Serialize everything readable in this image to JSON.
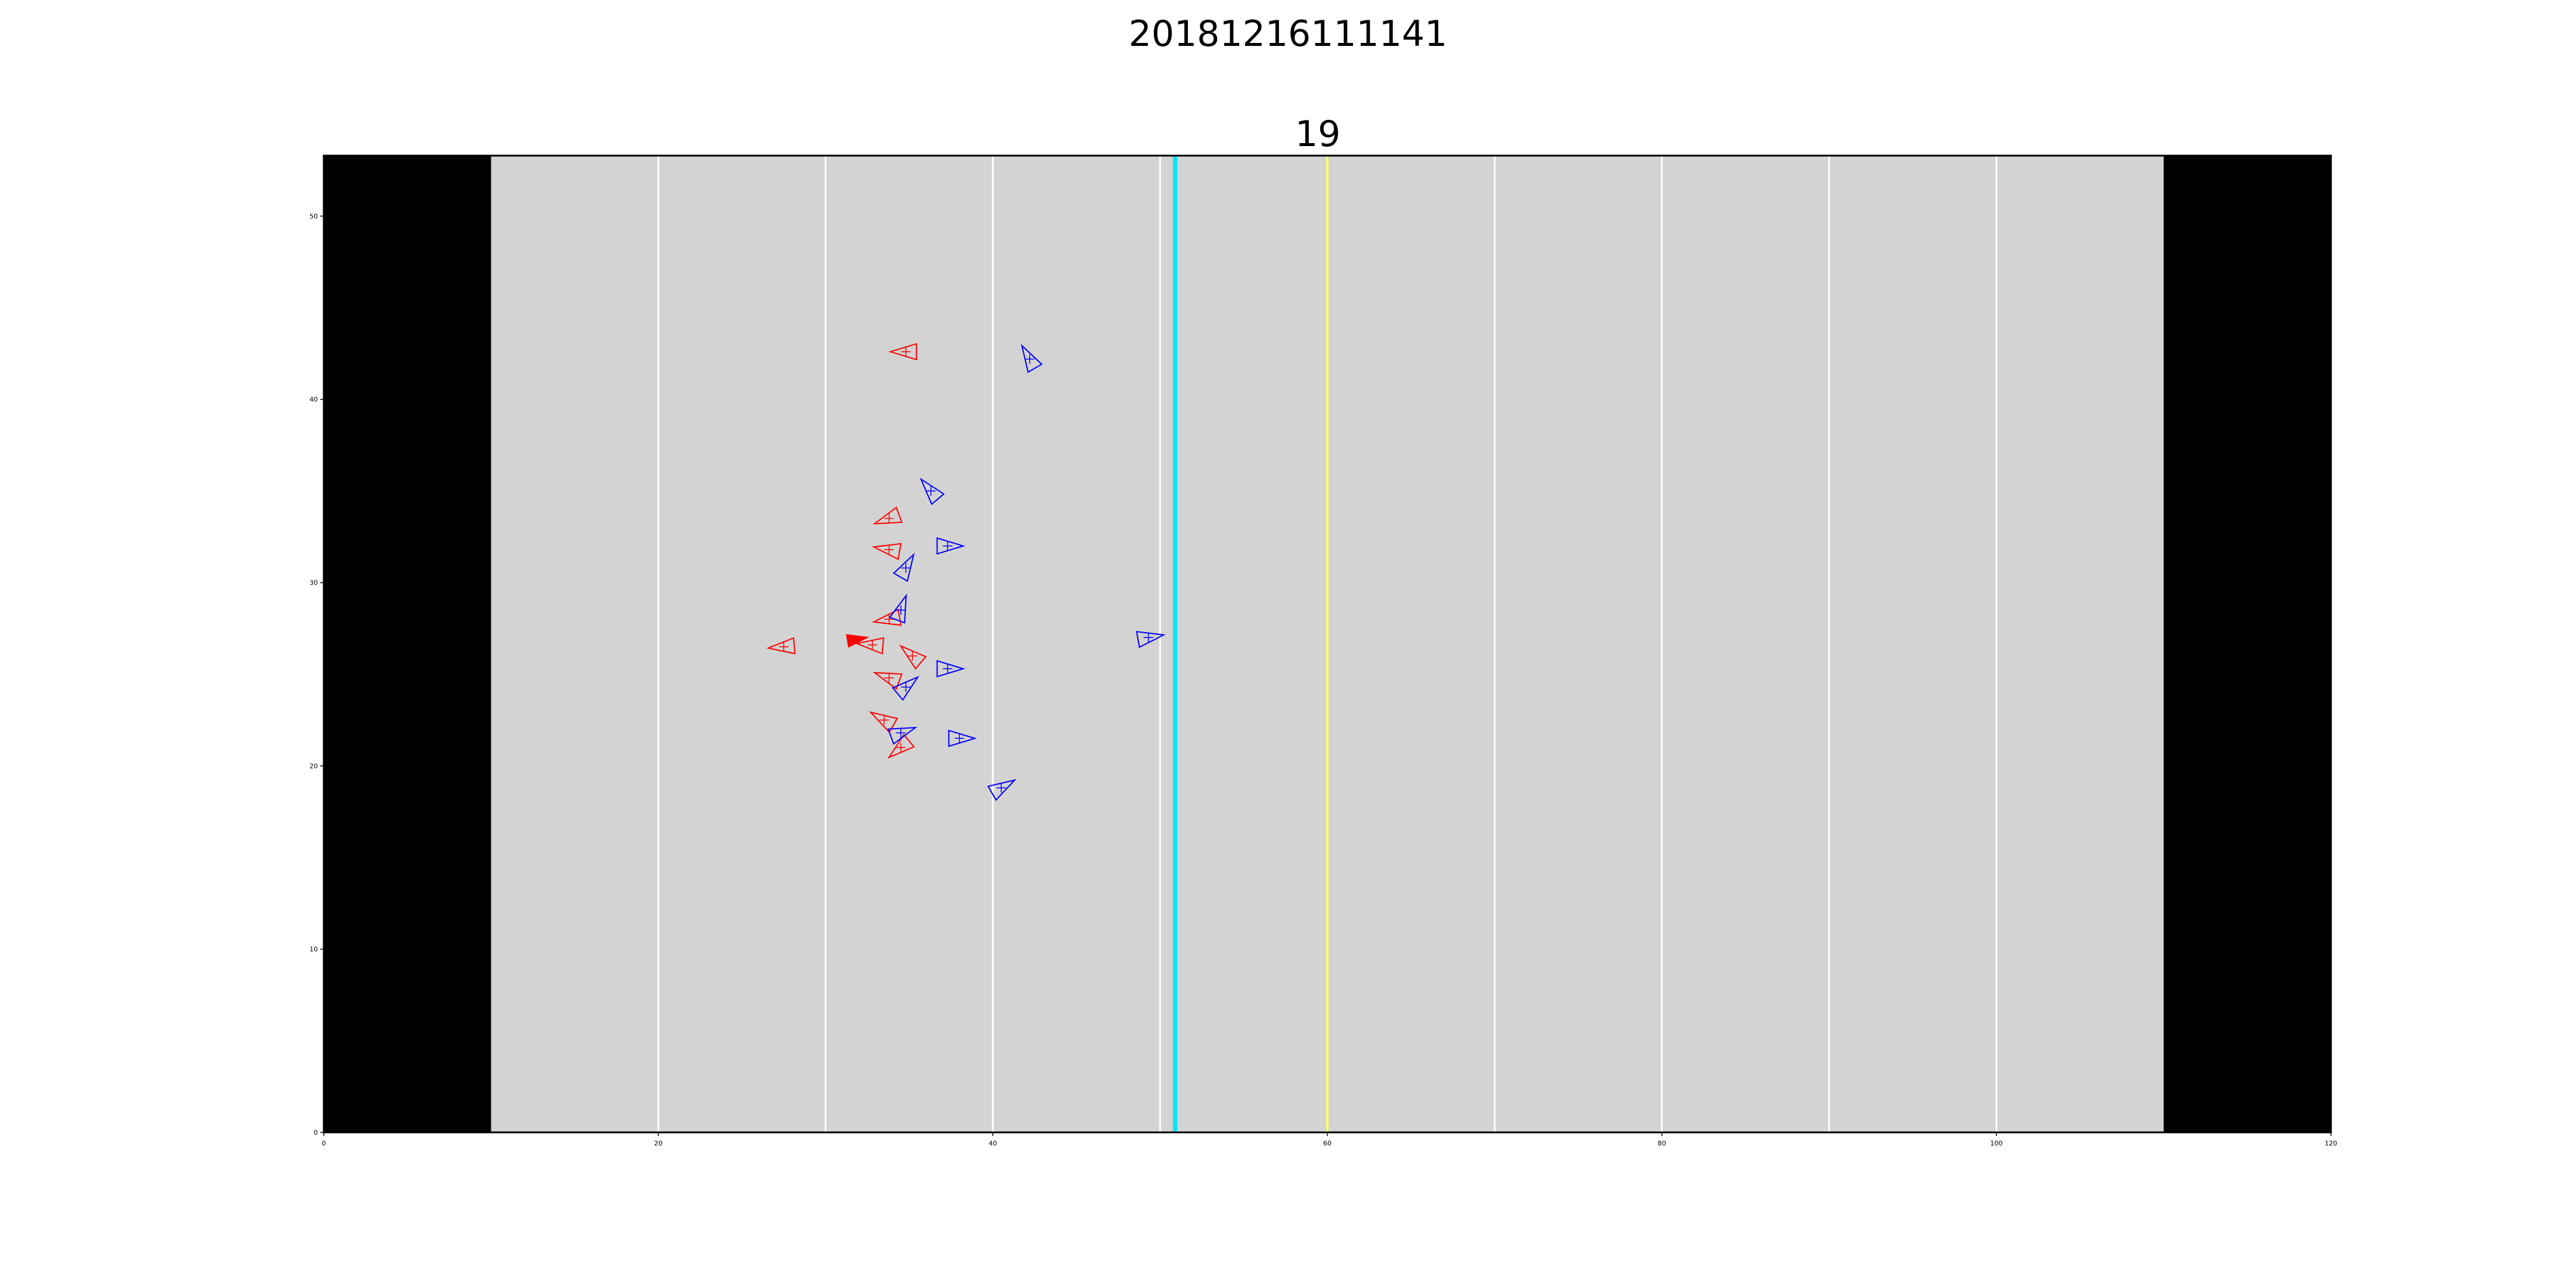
{
  "chart_data": {
    "type": "scatter",
    "title": "20181216111141",
    "subtitle": "19",
    "xlim": [
      0,
      120
    ],
    "ylim": [
      0,
      53.3
    ],
    "xticks": [
      0,
      20,
      40,
      60,
      80,
      100,
      120
    ],
    "yticks": [
      0,
      10,
      20,
      30,
      40,
      50
    ],
    "grid": false,
    "field": {
      "background": "#d3d3d3",
      "endzone_color": "#000000",
      "endzones": [
        [
          0,
          10
        ],
        [
          110,
          120
        ]
      ],
      "yard_lines": [
        20,
        30,
        40,
        50,
        70,
        80,
        90,
        100
      ],
      "yard_line_color": "#ffffff",
      "line_of_scrimmage": 50.9,
      "line_of_scrimmage_color": "#00e5ff",
      "first_down_line": 60,
      "first_down_color": "#ffff66"
    },
    "series": [
      {
        "color": "#ff0000",
        "marker": "triangle-outline",
        "points": [
          {
            "x": 34.8,
            "y": 42.6,
            "dir": 180
          },
          {
            "x": 33.8,
            "y": 33.5,
            "dir": 200
          },
          {
            "x": 33.8,
            "y": 31.8,
            "dir": 170
          },
          {
            "x": 33.8,
            "y": 28.0,
            "dir": 190
          },
          {
            "x": 27.5,
            "y": 26.5,
            "dir": 185
          },
          {
            "x": 32.8,
            "y": 26.6,
            "dir": 175
          },
          {
            "x": 35.2,
            "y": 26.0,
            "dir": 140
          },
          {
            "x": 33.8,
            "y": 24.8,
            "dir": 160
          },
          {
            "x": 33.5,
            "y": 22.5,
            "dir": 150
          },
          {
            "x": 34.5,
            "y": 21.0,
            "dir": 220
          }
        ]
      },
      {
        "color": "#ff0000",
        "marker": "triangle-filled",
        "points": [
          {
            "x": 31.8,
            "y": 26.9,
            "dir": 10
          }
        ]
      },
      {
        "color": "#0000ff",
        "marker": "triangle-outline",
        "points": [
          {
            "x": 42.2,
            "y": 42.2,
            "dir": 120
          },
          {
            "x": 36.3,
            "y": 35.0,
            "dir": 130
          },
          {
            "x": 37.3,
            "y": 32.0,
            "dir": 0
          },
          {
            "x": 34.8,
            "y": 30.8,
            "dir": 60
          },
          {
            "x": 34.5,
            "y": 28.5,
            "dir": 70
          },
          {
            "x": 49.3,
            "y": 27.0,
            "dir": 10
          },
          {
            "x": 37.3,
            "y": 25.3,
            "dir": 0
          },
          {
            "x": 34.8,
            "y": 24.3,
            "dir": 40
          },
          {
            "x": 34.5,
            "y": 21.8,
            "dir": 20
          },
          {
            "x": 38.0,
            "y": 21.5,
            "dir": 0
          },
          {
            "x": 40.5,
            "y": 18.8,
            "dir": 30
          }
        ]
      }
    ]
  }
}
